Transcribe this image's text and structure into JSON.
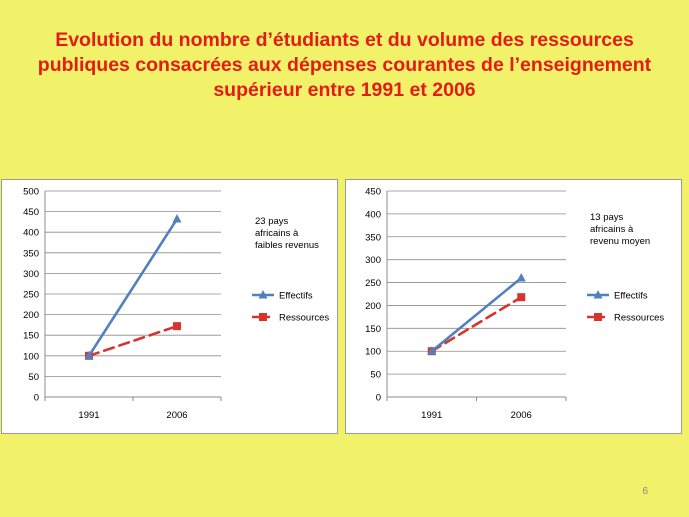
{
  "slide": {
    "title_lines": [
      "Evolution du nombre d’étudiants et du volume des ressources",
      "publiques consacrées aux dépenses courantes de l’enseignement",
      "supérieur entre 1991 et 2006"
    ],
    "page_number": "6"
  },
  "colors": {
    "background": "#f1f26a",
    "title": "#e41b17",
    "effectifs": "#4f81bd",
    "ressources": "#d9332e"
  },
  "chart_data": [
    {
      "type": "line",
      "categories": [
        "1991",
        "2006"
      ],
      "ylim": [
        0,
        500
      ],
      "yticks": [
        0,
        50,
        100,
        150,
        200,
        250,
        300,
        350,
        400,
        450,
        500
      ],
      "note_lines": [
        "23 pays",
        "africains à",
        "faibles revenus"
      ],
      "legend_position": "right",
      "grid": true,
      "series": [
        {
          "name": "Effectifs",
          "values": [
            100,
            432
          ],
          "color": "#4f81bd",
          "marker": "triangle",
          "dash": false
        },
        {
          "name": "Ressources",
          "values": [
            100,
            172
          ],
          "color": "#d9332e",
          "marker": "square",
          "dash": true
        }
      ]
    },
    {
      "type": "line",
      "categories": [
        "1991",
        "2006"
      ],
      "ylim": [
        0,
        450
      ],
      "yticks": [
        0,
        50,
        100,
        150,
        200,
        250,
        300,
        350,
        400,
        450
      ],
      "note_lines": [
        "13 pays",
        "africains à",
        "revenu moyen"
      ],
      "legend_position": "right",
      "grid": true,
      "series": [
        {
          "name": "Effectifs",
          "values": [
            100,
            260
          ],
          "color": "#4f81bd",
          "marker": "triangle",
          "dash": false
        },
        {
          "name": "Ressources",
          "values": [
            100,
            218
          ],
          "color": "#d9332e",
          "marker": "square",
          "dash": true
        }
      ]
    }
  ]
}
